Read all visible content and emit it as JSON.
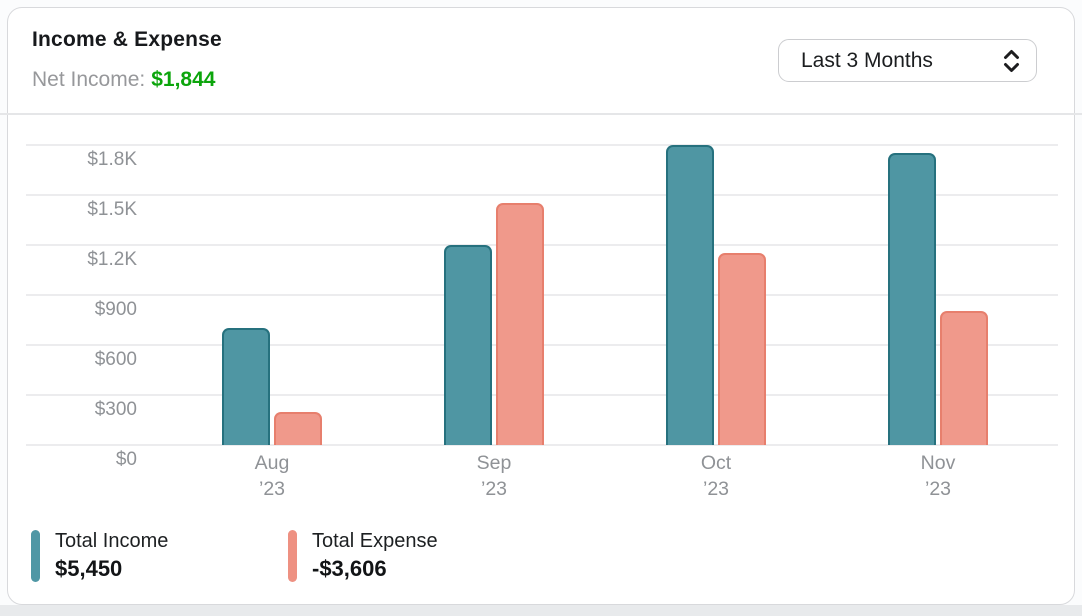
{
  "header": {
    "title": "Income & Expense",
    "net_income_label": "Net Income:",
    "net_income_value": "$1,844",
    "net_income_color": "#0ca50c",
    "period_selector": {
      "value": "Last 3 Months"
    }
  },
  "chart_data": {
    "type": "bar",
    "title": "Income & Expense",
    "categories": [
      "Aug ’23",
      "Sep ’23",
      "Oct ’23",
      "Nov ’23"
    ],
    "category_lines": [
      [
        "Aug",
        "’23"
      ],
      [
        "Sep",
        "’23"
      ],
      [
        "Oct",
        "’23"
      ],
      [
        "Nov",
        "’23"
      ]
    ],
    "series": [
      {
        "name": "Total Income",
        "total_label": "$5,450",
        "values": [
          700,
          1200,
          1800,
          1750
        ],
        "fill": "#4f96a3",
        "stroke": "#26717e"
      },
      {
        "name": "Total Expense",
        "total_label": "-$3,606",
        "values": [
          200,
          1450,
          1150,
          806
        ],
        "fill": "#f0998b",
        "stroke": "#e77f6d"
      }
    ],
    "y_ticks": [
      {
        "value": 1800,
        "label": "$1.8K"
      },
      {
        "value": 1500,
        "label": "$1.5K"
      },
      {
        "value": 1200,
        "label": "$1.2K"
      },
      {
        "value": 900,
        "label": "$900"
      },
      {
        "value": 600,
        "label": "$600"
      },
      {
        "value": 300,
        "label": "$300"
      },
      {
        "value": 0,
        "label": "$0"
      }
    ],
    "ylim": [
      0,
      1870
    ],
    "grid": "horizontal",
    "legend_position": "bottom-left"
  },
  "legend": {
    "items": [
      {
        "label": "Total Income",
        "value": "$5,450",
        "color": "#4f97a5"
      },
      {
        "label": "Total Expense",
        "value": "-$3,606",
        "color": "#ee9182"
      }
    ]
  }
}
